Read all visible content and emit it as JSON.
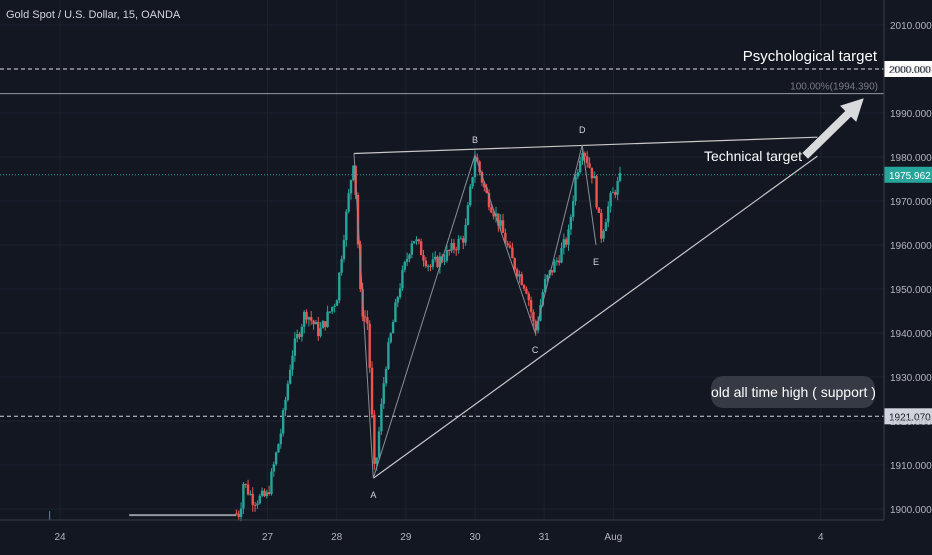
{
  "symbol_title": "Gold Spot / U.S. Dollar, 15, OANDA",
  "chart_data": {
    "type": "candlestick",
    "xlabel": "",
    "ylabel": "",
    "ylim": [
      1896,
      2016
    ],
    "x_ticks": [
      {
        "label": "24",
        "day": 24
      },
      {
        "label": "27",
        "day": 27
      },
      {
        "label": "28",
        "day": 28
      },
      {
        "label": "29",
        "day": 29
      },
      {
        "label": "30",
        "day": 30
      },
      {
        "label": "31",
        "day": 31
      },
      {
        "label": "Aug",
        "day": 32
      },
      {
        "label": "4",
        "day": 35
      }
    ],
    "y_ticks": [
      1900,
      1910,
      1920,
      1930,
      1940,
      1950,
      1960,
      1970,
      1980,
      1990,
      2000,
      2010
    ],
    "y_tick_labels": [
      "1900.000",
      "1910.000",
      "1920.000",
      "1930.000",
      "1940.000",
      "1950.000",
      "1960.000",
      "1970.000",
      "1980.000",
      "1990.000",
      "2000.000",
      "2010.000"
    ],
    "colors": {
      "up": "#26a69a",
      "down": "#ef5350",
      "background": "#131722",
      "grid": "#1e222d",
      "lines": "#c8c8c8"
    },
    "price_path": [
      [
        23.85,
        1898.5
      ],
      [
        26.6,
        1899
      ],
      [
        26.65,
        1906
      ],
      [
        26.8,
        1902
      ],
      [
        27.0,
        1903
      ],
      [
        27.2,
        1918
      ],
      [
        27.35,
        1935
      ],
      [
        27.55,
        1945
      ],
      [
        27.75,
        1940
      ],
      [
        28.0,
        1948
      ],
      [
        28.1,
        1962
      ],
      [
        28.25,
        1980.5
      ],
      [
        28.35,
        1946
      ],
      [
        28.45,
        1942
      ],
      [
        28.55,
        1907
      ],
      [
        28.7,
        1932
      ],
      [
        28.9,
        1950
      ],
      [
        29.1,
        1962
      ],
      [
        29.35,
        1955
      ],
      [
        29.6,
        1958
      ],
      [
        29.85,
        1962
      ],
      [
        30.0,
        1980.5
      ],
      [
        30.15,
        1972
      ],
      [
        30.35,
        1965
      ],
      [
        30.55,
        1956
      ],
      [
        30.75,
        1950
      ],
      [
        30.87,
        1940
      ],
      [
        31.0,
        1951
      ],
      [
        31.2,
        1957
      ],
      [
        31.35,
        1962
      ],
      [
        31.45,
        1975
      ],
      [
        31.55,
        1982.7
      ],
      [
        31.72,
        1975
      ],
      [
        31.82,
        1962
      ],
      [
        31.95,
        1970
      ],
      [
        32.1,
        1975
      ]
    ],
    "current_price": 1975.962,
    "current_price_label": "1975.962",
    "level_2000": 2000,
    "level_2000_label": "2000.000",
    "level_1921": 1921.07,
    "level_1921_label": "1921.070",
    "fib_level": 1994.39,
    "fib_label": "100.00%(1994.390)",
    "pattern_points": [
      {
        "label": "A",
        "day": 28.53,
        "price": 1907
      },
      {
        "label": "B",
        "day": 30.0,
        "price": 1980.5
      },
      {
        "label": "C",
        "day": 30.87,
        "price": 1940
      },
      {
        "label": "D",
        "day": 31.55,
        "price": 1982.7
      },
      {
        "label": "E",
        "day": 31.75,
        "price": 1960
      }
    ],
    "upper_trendline": [
      [
        28.25,
        1980.8
      ],
      [
        34.95,
        1984.5
      ]
    ],
    "lower_trendline": [
      [
        28.53,
        1907
      ],
      [
        34.95,
        1980.2
      ]
    ],
    "annotations": {
      "psychological_target": "Psychological target",
      "technical_target": "Technical target",
      "support_note": "old all time high  ( support )"
    }
  }
}
